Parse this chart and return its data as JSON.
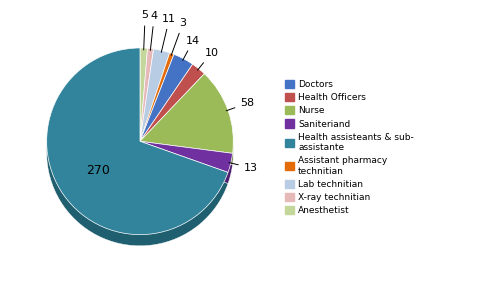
{
  "labels": [
    "Doctors",
    "Health Officers",
    "Nurse",
    "Saniteriand",
    "Health assisteants & sub-\nassistante",
    "Assistant pharmacy\ntechnitian",
    "Lab technitian",
    "X-ray technitian",
    "Anesthetist"
  ],
  "values": [
    14,
    10,
    58,
    13,
    270,
    3,
    11,
    4,
    5
  ],
  "colors": [
    "#4472C4",
    "#C0504D",
    "#9BBB59",
    "#7030A0",
    "#31849B",
    "#E36C09",
    "#B8CCE4",
    "#E6B8B7",
    "#C4D79B"
  ],
  "dark_colors": [
    "#2E5087",
    "#8B3735",
    "#6B8240",
    "#4E2070",
    "#1F5F70",
    "#A04B05",
    "#7A94B0",
    "#B07070",
    "#8B9E6B"
  ],
  "legend_labels": [
    "Doctors",
    "Health Officers",
    "Nurse",
    "Saniteriand",
    "Health assisteants & sub-\nassistante",
    "Assistant pharmacy\ntechnitian",
    "Lab technitian",
    "X-ray technitian",
    "Anesthetist"
  ],
  "value_labels": [
    "14",
    "10",
    "58",
    "13",
    "270",
    "3",
    "11",
    "4",
    "5"
  ],
  "startangle": 162,
  "depth": 0.12
}
